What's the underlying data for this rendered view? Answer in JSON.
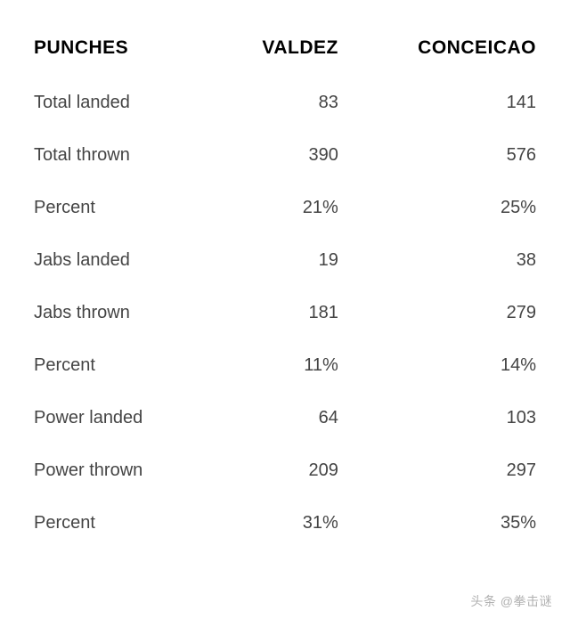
{
  "table": {
    "type": "table",
    "background_color": "#ffffff",
    "text_color": "#444444",
    "header_color": "#000000",
    "header_fontsize": 21,
    "body_fontsize": 20,
    "columns": [
      {
        "label": "PUNCHES",
        "align": "left"
      },
      {
        "label": "VALDEZ",
        "align": "right"
      },
      {
        "label": "CONCEICAO",
        "align": "right"
      }
    ],
    "rows": [
      {
        "label": "Total landed",
        "valdez": "83",
        "conceicao": "141"
      },
      {
        "label": "Total thrown",
        "valdez": "390",
        "conceicao": "576"
      },
      {
        "label": "Percent",
        "valdez": "21%",
        "conceicao": "25%"
      },
      {
        "label": "Jabs landed",
        "valdez": "19",
        "conceicao": "38"
      },
      {
        "label": "Jabs thrown",
        "valdez": "181",
        "conceicao": "279"
      },
      {
        "label": "Percent",
        "valdez": "11%",
        "conceicao": "14%"
      },
      {
        "label": "Power landed",
        "valdez": "64",
        "conceicao": "103"
      },
      {
        "label": "Power thrown",
        "valdez": "209",
        "conceicao": "297"
      },
      {
        "label": "Percent",
        "valdez": "31%",
        "conceicao": "35%"
      }
    ]
  },
  "watermark": "头条 @拳击谜"
}
